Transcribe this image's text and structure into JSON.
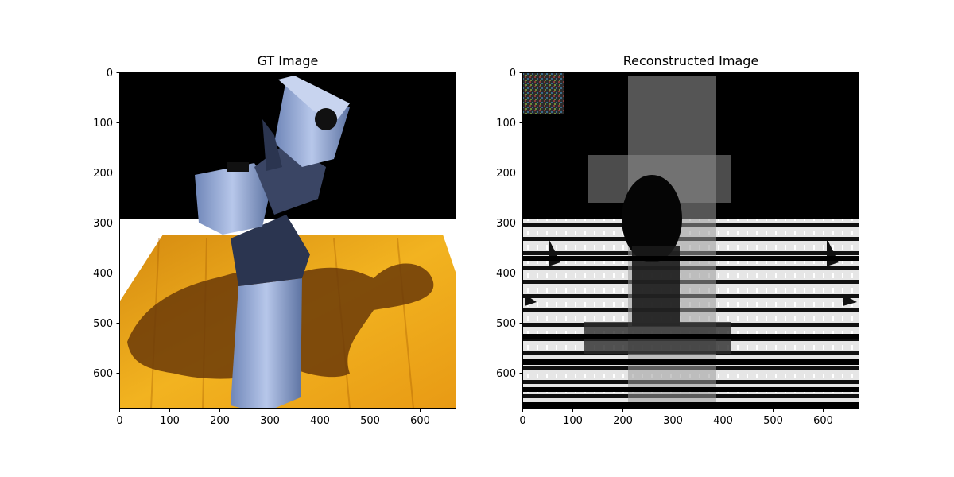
{
  "chart_data": [
    {
      "type": "image",
      "title": "GT Image",
      "xlabel": "",
      "ylabel": "",
      "xlim": [
        0,
        672
      ],
      "ylim": [
        672,
        0
      ],
      "x_ticks": [
        0,
        100,
        200,
        300,
        400,
        500,
        600
      ],
      "y_ticks": [
        0,
        100,
        200,
        300,
        400,
        500,
        600
      ],
      "content": "robot arm on a wooden table (photo)"
    },
    {
      "type": "image",
      "title": "Reconstructed Image",
      "xlabel": "",
      "ylabel": "",
      "xlim": [
        0,
        672
      ],
      "ylim": [
        672,
        0
      ],
      "x_ticks": [
        0,
        100,
        200,
        300,
        400,
        500,
        600
      ],
      "y_ticks": [
        0,
        100,
        200,
        300,
        400,
        500,
        600
      ],
      "content": "grayscale noisy reconstruction with horizontal banding"
    }
  ]
}
